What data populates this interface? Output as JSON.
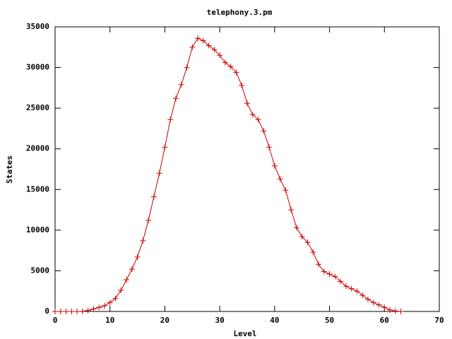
{
  "chart_data": {
    "type": "line",
    "title": "telephony.3.pm",
    "x_label": "Level",
    "y_label": "States",
    "x": [
      0,
      1,
      2,
      3,
      4,
      5,
      6,
      7,
      8,
      9,
      10,
      11,
      12,
      13,
      14,
      15,
      16,
      17,
      18,
      19,
      20,
      21,
      22,
      23,
      24,
      25,
      26,
      27,
      28,
      29,
      30,
      31,
      32,
      33,
      34,
      35,
      36,
      37,
      38,
      39,
      40,
      41,
      42,
      43,
      44,
      45,
      46,
      47,
      48,
      49,
      50,
      51,
      52,
      53,
      54,
      55,
      56,
      57,
      58,
      59,
      60,
      61,
      62,
      63
    ],
    "values": [
      0,
      0,
      0,
      0,
      0,
      10,
      120,
      300,
      500,
      700,
      1100,
      1600,
      2600,
      3900,
      5200,
      6700,
      8700,
      11200,
      14100,
      17000,
      20200,
      23600,
      26200,
      27900,
      30000,
      32500,
      33600,
      33300,
      32700,
      32200,
      31500,
      30600,
      30100,
      29400,
      27800,
      25600,
      24200,
      23600,
      22200,
      20200,
      17900,
      16300,
      14900,
      12500,
      10300,
      9200,
      8500,
      7300,
      5800,
      4900,
      4600,
      4300,
      3700,
      3100,
      2800,
      2500,
      2000,
      1500,
      1100,
      800,
      500,
      200,
      50,
      0
    ],
    "color": "#cc0000",
    "xlim": [
      0,
      70
    ],
    "xticks": [
      0,
      10,
      20,
      30,
      40,
      50,
      60,
      70
    ],
    "ylim": [
      0,
      35000
    ],
    "yticks": [
      0,
      5000,
      10000,
      15000,
      20000,
      25000,
      30000,
      35000
    ],
    "grid": false
  }
}
